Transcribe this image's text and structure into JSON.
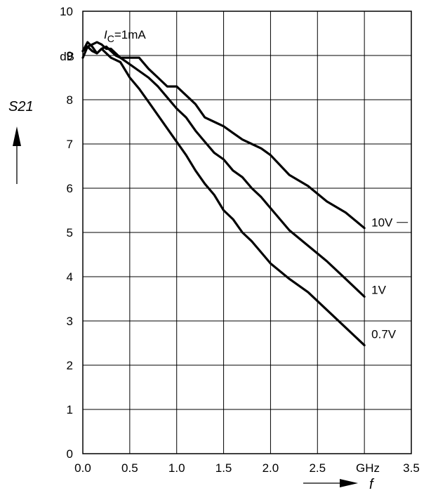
{
  "chart_data": {
    "type": "line",
    "title": "",
    "xlabel": "f",
    "ylabel": "S21",
    "x_unit": "GHz",
    "y_unit": "dB",
    "xlim": [
      0,
      3.5
    ],
    "ylim": [
      0,
      10
    ],
    "x_ticks": [
      "0.0",
      "0.5",
      "1.0",
      "1.5",
      "2.0",
      "2.5",
      "3.5"
    ],
    "y_ticks": [
      "0",
      "1",
      "2",
      "3",
      "4",
      "5",
      "6",
      "7",
      "8",
      "9",
      "10"
    ],
    "grid": true,
    "annotation": {
      "symbol": "I",
      "subscript": "C",
      "text": "=1mA"
    },
    "series": [
      {
        "name": "10V",
        "x": [
          0.0,
          0.05,
          0.1,
          0.15,
          0.2,
          0.25,
          0.3,
          0.35,
          0.4,
          0.5,
          0.6,
          0.7,
          0.8,
          0.9,
          1.0,
          1.1,
          1.2,
          1.3,
          1.4,
          1.5,
          1.6,
          1.7,
          1.8,
          1.9,
          2.0,
          2.2,
          2.4,
          2.6,
          2.8,
          3.0
        ],
        "y": [
          8.95,
          9.2,
          9.1,
          9.05,
          9.15,
          9.2,
          9.1,
          9.0,
          8.95,
          8.95,
          8.95,
          8.7,
          8.5,
          8.3,
          8.3,
          8.1,
          7.9,
          7.6,
          7.5,
          7.4,
          7.25,
          7.1,
          7.0,
          6.9,
          6.75,
          6.3,
          6.05,
          5.7,
          5.45,
          5.1
        ]
      },
      {
        "name": "1V",
        "x": [
          0.0,
          0.05,
          0.1,
          0.15,
          0.2,
          0.25,
          0.3,
          0.35,
          0.4,
          0.5,
          0.6,
          0.7,
          0.8,
          0.9,
          1.0,
          1.1,
          1.2,
          1.3,
          1.4,
          1.5,
          1.6,
          1.7,
          1.8,
          1.9,
          2.0,
          2.2,
          2.4,
          2.6,
          2.8,
          3.0
        ],
        "y": [
          9.1,
          9.2,
          9.25,
          9.3,
          9.25,
          9.15,
          9.15,
          9.05,
          8.95,
          8.8,
          8.65,
          8.5,
          8.3,
          8.05,
          7.8,
          7.6,
          7.3,
          7.05,
          6.8,
          6.65,
          6.4,
          6.25,
          6.0,
          5.8,
          5.55,
          5.05,
          4.7,
          4.35,
          3.95,
          3.55
        ]
      },
      {
        "name": "0.7V",
        "x": [
          0.0,
          0.05,
          0.1,
          0.15,
          0.2,
          0.25,
          0.3,
          0.35,
          0.4,
          0.5,
          0.6,
          0.7,
          0.8,
          0.9,
          1.0,
          1.1,
          1.2,
          1.3,
          1.4,
          1.5,
          1.6,
          1.7,
          1.8,
          1.9,
          2.0,
          2.2,
          2.4,
          2.6,
          2.8,
          3.0
        ],
        "y": [
          9.1,
          9.3,
          9.2,
          9.05,
          9.15,
          9.05,
          8.95,
          8.9,
          8.85,
          8.5,
          8.25,
          7.95,
          7.65,
          7.35,
          7.05,
          6.75,
          6.4,
          6.1,
          5.85,
          5.5,
          5.3,
          5.0,
          4.8,
          4.55,
          4.3,
          3.95,
          3.65,
          3.25,
          2.85,
          2.45
        ]
      }
    ]
  }
}
